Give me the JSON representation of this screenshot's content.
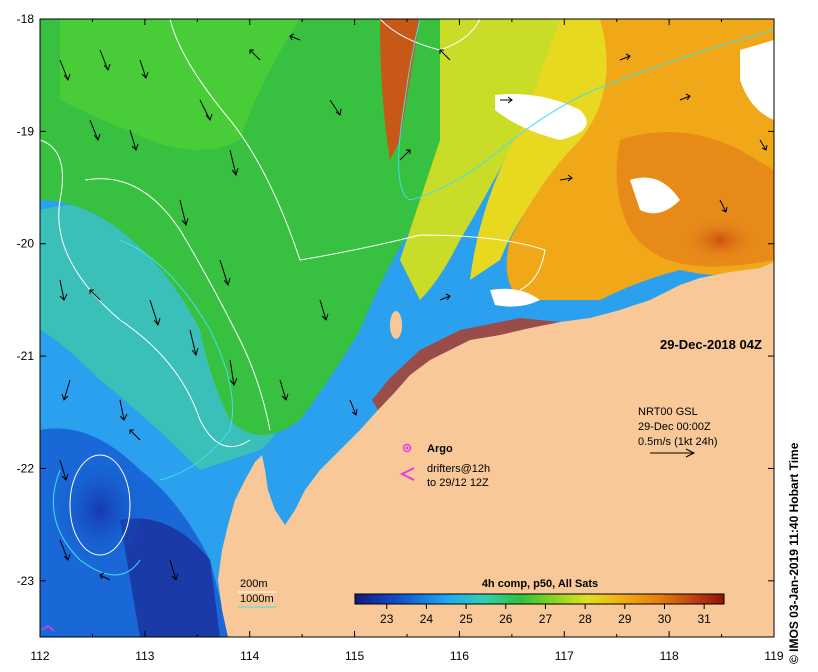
{
  "map": {
    "date_label": "29-Dec-2018 04Z",
    "credit": "© IMOS 03-Jan-2019 11:40 Hobart Time",
    "lon_ticks": [
      "112",
      "113",
      "114",
      "115",
      "116",
      "117",
      "118",
      "119"
    ],
    "lat_ticks": [
      "-18",
      "-19",
      "-20",
      "-21",
      "-22",
      "-23"
    ],
    "lon_range": [
      112,
      119
    ],
    "lat_range": [
      -23.5,
      -18
    ],
    "currents": {
      "line1": "NRT00 GSL",
      "line2": "29-Dec 00:00Z",
      "line3": "0.5m/s (1kt 24h)"
    },
    "argo_label": "Argo",
    "drifters_line1": "drifters@12h",
    "drifters_line2": "to 29/12 12Z",
    "isobaths": {
      "shallow": "200m",
      "deep": "1000m"
    },
    "colorbar": {
      "title": "4h comp, p50, All Sats",
      "ticks": [
        "23",
        "24",
        "25",
        "26",
        "27",
        "28",
        "29",
        "30",
        "31"
      ],
      "range": [
        22.2,
        31.5
      ]
    },
    "colors": {
      "land": "#f8c898",
      "deep_blue": "#1060d0",
      "mid_blue": "#30a8f0",
      "green": "#30c040",
      "yellow": "#d8e020",
      "orange": "#f09010",
      "isobath": "#ffffff",
      "isobath_deep": "#40e0f0",
      "argo": "#e040e0",
      "drifter": "#e040e0"
    }
  }
}
